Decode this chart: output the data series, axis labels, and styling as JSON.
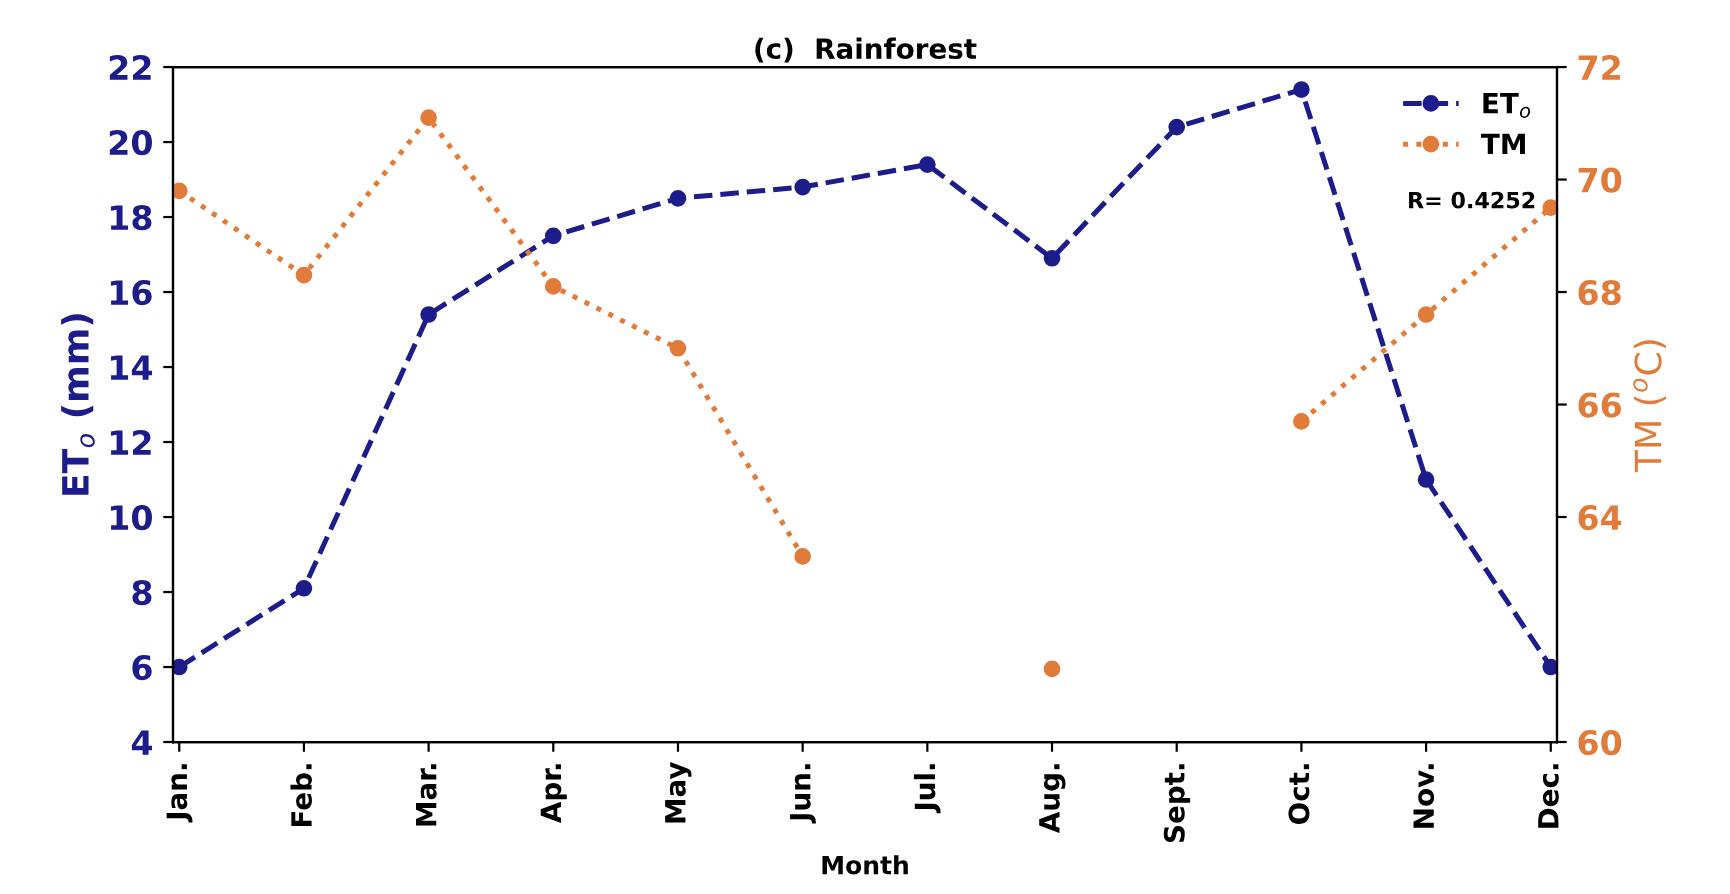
{
  "chart_data": {
    "type": "line",
    "title": "(c)  Rainforest",
    "xlabel": "Month",
    "ylabel": "ET$_{o}$ (mm)",
    "y2label": "TM ($^{o}$C)",
    "categories": [
      "Jan.",
      "Feb.",
      "Mar.",
      "Apr.",
      "May",
      "Jun.",
      "Jul.",
      "Aug.",
      "Sept.",
      "Oct.",
      "Nov.",
      "Dec."
    ],
    "series": [
      {
        "name": "ET$_{o}$",
        "color": "#1c1c8a",
        "line_style": "dashed",
        "marker": "circle",
        "values": [
          6.0,
          8.1,
          15.4,
          17.5,
          18.5,
          18.8,
          19.4,
          16.9,
          20.4,
          21.4,
          11.0,
          6.0
        ]
      },
      {
        "name": "TM",
        "color": "#e07b39",
        "line_style": "dotted",
        "marker": "circle",
        "axis": "y2",
        "values": [
          69.8,
          68.3,
          71.1,
          68.1,
          67.0,
          63.3,
          null,
          61.3,
          null,
          65.7,
          67.6,
          69.5
        ]
      }
    ],
    "ylim": [
      4,
      22
    ],
    "yticks": [
      4,
      6,
      8,
      10,
      12,
      14,
      16,
      18,
      20,
      22
    ],
    "y2lim": [
      60,
      72
    ],
    "y2ticks": [
      60,
      64,
      66,
      68,
      70,
      72
    ],
    "annotations": [
      "R= 0.4252"
    ],
    "legend": "top right",
    "grid": false
  }
}
